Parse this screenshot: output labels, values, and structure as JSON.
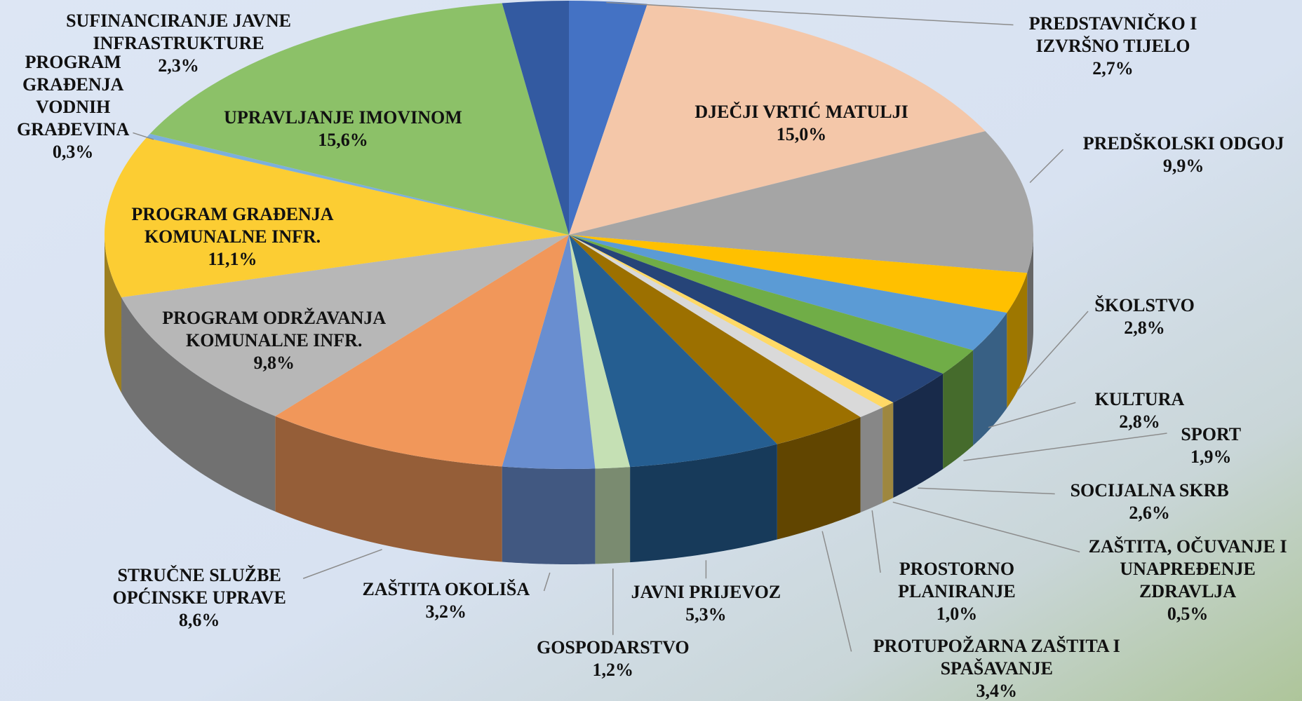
{
  "chart_data": {
    "type": "pie",
    "categories": [
      "PREDSTAVNIČKO I IZVRŠNO TIJELO",
      "DJEČJI VRTIĆ MATULJI",
      "PREDŠKOLSKI ODGOJ",
      "ŠKOLSTVO",
      "KULTURA",
      "SPORT",
      "SOCIJALNA SKRB",
      "ZAŠTITA, OČUVANJE I UNAPREĐENJE ZDRAVLJA",
      "PROSTORNO PLANIRANJE",
      "PROTUPOŽARNA ZAŠTITA I SPAŠAVANJE",
      "JAVNI PRIJEVOZ",
      "GOSPODARSTVO",
      "ZAŠTITA OKOLIŠA",
      "STRUČNE SLUŽBE OPĆINSKE UPRAVE",
      "PROGRAM ODRŽAVANJA KOMUNALNE INFR.",
      "PROGRAM GRAĐENJA KOMUNALNE INFR.",
      "PROGRAM GRAĐENJA VODNIH GRAĐEVINA",
      "UPRAVLJANJE IMOVINOM",
      "SUFINANCIRANJE JAVNE INFRASTRUKTURE"
    ],
    "values": [
      2.7,
      15.0,
      9.9,
      2.8,
      2.8,
      1.9,
      2.6,
      0.5,
      1.0,
      3.4,
      5.3,
      1.2,
      3.2,
      8.6,
      9.8,
      11.1,
      0.3,
      15.6,
      2.3
    ],
    "value_labels": [
      "2,7%",
      "15,0%",
      "9,9%",
      "2,8%",
      "2,8%",
      "1,9%",
      "2,6%",
      "0,5%",
      "1,0%",
      "3,4%",
      "5,3%",
      "1,2%",
      "3,2%",
      "8,6%",
      "9,8%",
      "11,1%",
      "0,3%",
      "15,6%",
      "2,3%"
    ],
    "colors": [
      "#4472c4",
      "#f4c7a9",
      "#a5a5a5",
      "#ffc000",
      "#5b9bd5",
      "#70ad47",
      "#264478",
      "#ffd966",
      "#d9d9d9",
      "#9c7000",
      "#255e91",
      "#c5e0b4",
      "#698ed0",
      "#f1975a",
      "#b7b7b7",
      "#fccd33",
      "#7cafdd",
      "#8cc168",
      "#335aa1"
    ]
  }
}
